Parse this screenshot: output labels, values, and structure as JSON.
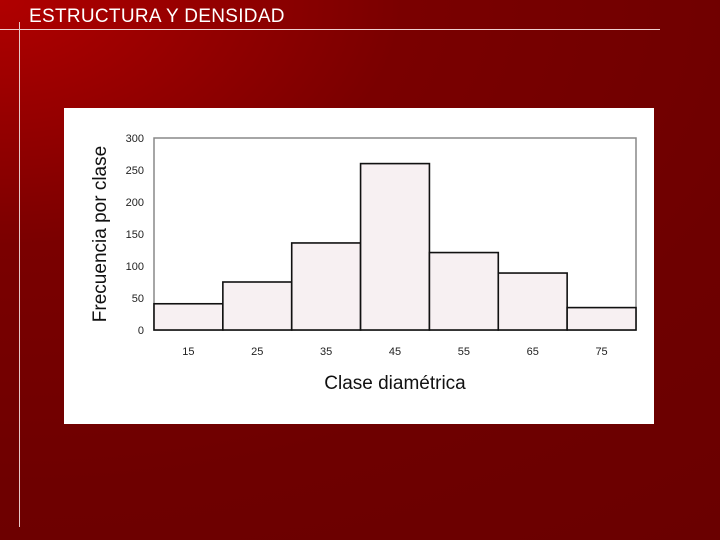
{
  "slide": {
    "title": "ESTRUCTURA Y DENSIDAD"
  },
  "colors": {
    "background": "#7a0000",
    "bar_fill": "#f7f0f2",
    "bar_stroke": "#111111"
  },
  "chart_data": {
    "type": "bar",
    "title": "",
    "xlabel": "Clase diamétrica",
    "ylabel": "Frecuencia por clase",
    "categories": [
      "15",
      "25",
      "35",
      "45",
      "55",
      "65",
      "75"
    ],
    "values": [
      41,
      75,
      136,
      260,
      121,
      89,
      35
    ],
    "ylim": [
      0,
      300
    ],
    "yticks": [
      "0",
      "50",
      "100",
      "150",
      "200",
      "250",
      "300"
    ],
    "grid": false,
    "legend": "none"
  }
}
